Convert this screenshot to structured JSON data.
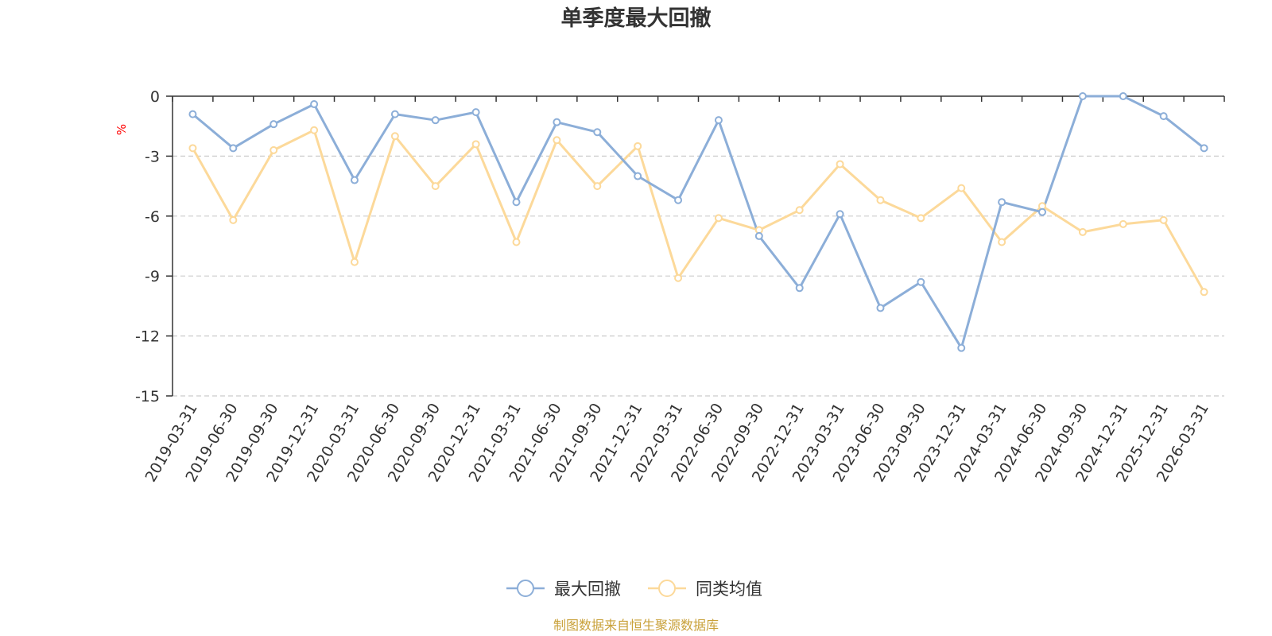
{
  "chart_data": {
    "type": "line",
    "title": "单季度最大回撤",
    "ylabel": "%",
    "ylim": [
      -15,
      0
    ],
    "yticks": [
      0,
      -3,
      -6,
      -9,
      -12,
      -15
    ],
    "grid": true,
    "legend_position": "bottom-center",
    "categories": [
      "2019-03-31",
      "2019-06-30",
      "2019-09-30",
      "2019-12-31",
      "2020-03-31",
      "2020-06-30",
      "2020-09-30",
      "2020-12-31",
      "2021-03-31",
      "2021-06-30",
      "2021-09-30",
      "2021-12-31",
      "2022-03-31",
      "2022-06-30",
      "2022-09-30",
      "2022-12-31",
      "2023-03-31",
      "2023-06-30",
      "2023-09-30",
      "2023-12-31",
      "2024-03-31",
      "2024-06-30",
      "2024-09-30",
      "2024-12-31",
      "2025-12-31",
      "2026-03-31"
    ],
    "series": [
      {
        "name": "最大回撤",
        "color": "#8caed8",
        "values": [
          -0.9,
          -2.6,
          -1.4,
          -0.4,
          -4.2,
          -0.9,
          -1.2,
          -0.8,
          -5.3,
          -1.3,
          -1.8,
          -4.0,
          -5.2,
          -1.2,
          -7.0,
          -9.6,
          -5.9,
          -10.6,
          -9.3,
          -12.6,
          -5.3,
          -5.8,
          0.0,
          0.0,
          -1.0,
          -2.6
        ]
      },
      {
        "name": "同类均值",
        "color": "#fcd99a",
        "values": [
          -2.6,
          -6.2,
          -2.7,
          -1.7,
          -8.3,
          -2.0,
          -4.5,
          -2.4,
          -7.3,
          -2.2,
          -4.5,
          -2.5,
          -9.1,
          -6.1,
          -6.7,
          -5.7,
          -3.4,
          -5.2,
          -6.1,
          -4.6,
          -7.3,
          -5.5,
          -6.8,
          -6.4,
          -6.2,
          -9.8
        ]
      }
    ],
    "source_note": "制图数据来自恒生聚源数据库"
  }
}
